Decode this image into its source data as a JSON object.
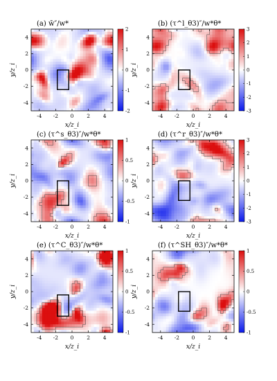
{
  "chart_data": [
    {
      "type": "heatmap",
      "panel_label": "(a)",
      "title": "(a) w̄″/w*",
      "xlabel": "x/z_i",
      "ylabel": "y/z_i",
      "xlim": [
        -5,
        5
      ],
      "ylim": [
        -5,
        5
      ],
      "xticks": [
        "-4",
        "-2",
        "0",
        "2",
        "4"
      ],
      "yticks": [
        "-4",
        "-2",
        "0",
        "2",
        "4"
      ],
      "colorbar": {
        "min": -2,
        "max": 2,
        "ticks": [
          "2",
          "1",
          "0",
          "-1",
          "-2"
        ],
        "colormap": "blue-white-red"
      },
      "highlight_box": {
        "x": [
          -1.8,
          -0.4
        ],
        "y": [
          -2.4,
          0
        ]
      },
      "contours": false,
      "seed": 11,
      "bias": 0.32,
      "contrast": 0.95
    },
    {
      "type": "heatmap",
      "panel_label": "(b)",
      "title": "(b) (τ^l_θ3)″/w*θ*",
      "xlabel": "x/z_i",
      "ylabel": "y/z_i",
      "xlim": [
        -5,
        5
      ],
      "ylim": [
        -5,
        5
      ],
      "xticks": [
        "-4",
        "-2",
        "0",
        "2",
        "4"
      ],
      "yticks": [
        "-4",
        "-2",
        "0",
        "2",
        "4"
      ],
      "colorbar": {
        "min": -3,
        "max": 3,
        "ticks": [
          "3",
          "2",
          "1",
          "0",
          "-1",
          "-2",
          "-3"
        ],
        "colormap": "blue-white-red"
      },
      "highlight_box": {
        "x": [
          -1.8,
          -0.4
        ],
        "y": [
          -2.4,
          0
        ]
      },
      "contours": true,
      "seed": 23,
      "bias": 0.15,
      "contrast": 0.75
    },
    {
      "type": "heatmap",
      "panel_label": "(c)",
      "title": "(c) (τ^s_θ3)″/w*θ*",
      "xlabel": "x/z_i",
      "ylabel": "y/z_i",
      "xlim": [
        -5,
        5
      ],
      "ylim": [
        -5,
        5
      ],
      "xticks": [
        "-4",
        "-2",
        "0",
        "2",
        "4"
      ],
      "yticks": [
        "-4",
        "-2",
        "0",
        "2",
        "4"
      ],
      "colorbar": {
        "min": -1,
        "max": 1,
        "ticks": [
          "1",
          "0.5",
          "0",
          "-0.5",
          "-1"
        ],
        "colormap": "blue-white-red"
      },
      "highlight_box": {
        "x": [
          -1.8,
          -0.4
        ],
        "y": [
          -3.0,
          0
        ]
      },
      "contours": true,
      "seed": 37,
      "bias": 0.28,
      "contrast": 0.95
    },
    {
      "type": "heatmap",
      "panel_label": "(d)",
      "title": "(d) (τ^r_θ3)″/w*θ*",
      "xlabel": "x/z_i",
      "ylabel": "y/z_i",
      "xlim": [
        -5,
        5
      ],
      "ylim": [
        -5,
        5
      ],
      "xticks": [
        "-4",
        "-2",
        "0",
        "2",
        "4"
      ],
      "yticks": [
        "-4",
        "-2",
        "0",
        "2",
        "4"
      ],
      "colorbar": {
        "min": -3,
        "max": 3,
        "ticks": [
          "3",
          "2",
          "1",
          "0",
          "-1",
          "-2",
          "-3"
        ],
        "colormap": "blue-white-red"
      },
      "highlight_box": {
        "x": [
          -1.8,
          -0.4
        ],
        "y": [
          -2.4,
          0
        ]
      },
      "contours": true,
      "seed": 53,
      "bias": 0.18,
      "contrast": 0.7
    },
    {
      "type": "heatmap",
      "panel_label": "(e)",
      "title": "(e) (τ^C_θ3)″/w*θ*",
      "xlabel": "x/z_i",
      "ylabel": "y/z_i",
      "xlim": [
        -5,
        5
      ],
      "ylim": [
        -5,
        5
      ],
      "xticks": [
        "-4",
        "-2",
        "0",
        "2",
        "4"
      ],
      "yticks": [
        "-4",
        "-2",
        "0",
        "2",
        "4"
      ],
      "colorbar": {
        "min": -1,
        "max": 1,
        "ticks": [
          "1",
          "0.5",
          "0",
          "-0.5",
          "-1"
        ],
        "colormap": "blue-white-red"
      },
      "highlight_box": {
        "x": [
          -1.8,
          -0.4
        ],
        "y": [
          -3.0,
          -0.4
        ]
      },
      "contours": true,
      "seed": 71,
      "bias": 0.3,
      "contrast": 0.95
    },
    {
      "type": "heatmap",
      "panel_label": "(f)",
      "title": "(f) (τ^SH_θ3)″/w*θ*",
      "xlabel": "x/z_i",
      "ylabel": "y/z_i",
      "xlim": [
        -5,
        5
      ],
      "ylim": [
        -5,
        5
      ],
      "xticks": [
        "-4",
        "-2",
        "0",
        "2",
        "4"
      ],
      "yticks": [
        "-4",
        "-2",
        "0",
        "2",
        "4"
      ],
      "colorbar": {
        "min": -1,
        "max": 1,
        "ticks": [
          "1",
          "0.5",
          "0",
          "-0.5",
          "-1"
        ],
        "colormap": "blue-white-red"
      },
      "highlight_box": {
        "x": [
          -1.8,
          -0.4
        ],
        "y": [
          -2.4,
          0
        ]
      },
      "contours": true,
      "seed": 97,
      "bias": 0.0,
      "contrast": 0.85
    }
  ]
}
